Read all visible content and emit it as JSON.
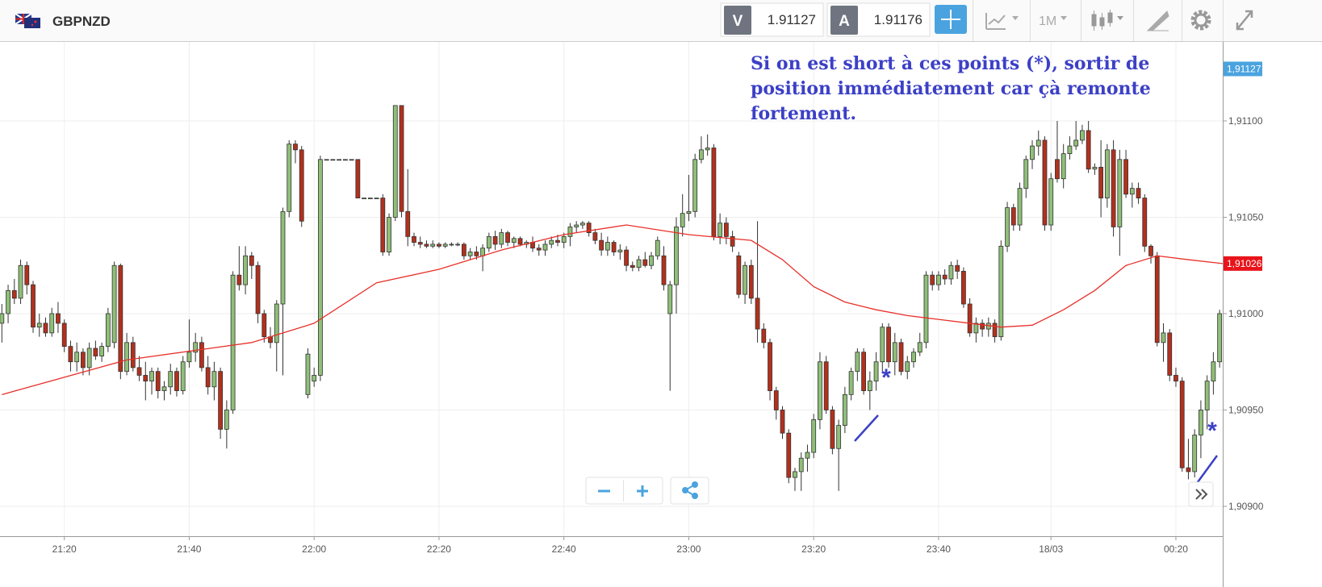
{
  "header": {
    "symbol": "GBPNZD",
    "bid_label": "V",
    "bid": 1.91127,
    "ask_label": "A",
    "ask": 1.91176,
    "timeframe": "1M"
  },
  "chart_data": {
    "type": "candlestick",
    "xlim": [
      -0.3,
      195.5
    ],
    "xticks": [
      {
        "value": 10,
        "label": "21:20"
      },
      {
        "value": 30,
        "label": "21:40"
      },
      {
        "value": 50,
        "label": "22:00"
      },
      {
        "value": 70,
        "label": "22:20"
      },
      {
        "value": 90,
        "label": "22:40"
      },
      {
        "value": 110,
        "label": "23:00"
      },
      {
        "value": 130,
        "label": "23:20"
      },
      {
        "value": 150,
        "label": "23:40"
      },
      {
        "value": 168,
        "label": "18/03"
      },
      {
        "value": 188,
        "label": "00:20"
      }
    ],
    "ylim": [
      1.908845,
      1.91141
    ],
    "yticks": [
      {
        "value": 1.909,
        "label": "1,90900"
      },
      {
        "value": 1.9095,
        "label": "1,90950"
      },
      {
        "value": 1.91,
        "label": "1,91000"
      },
      {
        "value": 1.9105,
        "label": "1,91050"
      },
      {
        "value": 1.911,
        "label": "1,91100"
      }
    ],
    "grid": true,
    "up_color": "#8fbf78",
    "down_color": "#b3301c",
    "candles": [
      [
        1.90995,
        1.91005,
        1.90985,
        1.91
      ],
      [
        1.91,
        1.91015,
        1.90995,
        1.91012
      ],
      [
        1.91012,
        1.91018,
        1.91005,
        1.91008
      ],
      [
        1.91008,
        1.91028,
        1.91005,
        1.91025
      ],
      [
        1.91025,
        1.91027,
        1.9101,
        1.91015
      ],
      [
        1.91015,
        1.91017,
        1.9099,
        1.90993
      ],
      [
        1.90993,
        1.91,
        1.90988,
        1.90995
      ],
      [
        1.90995,
        1.90998,
        1.90988,
        1.9099
      ],
      [
        1.9099,
        1.91003,
        1.90988,
        1.91
      ],
      [
        1.91,
        1.91006,
        1.9099,
        1.90995
      ],
      [
        1.90995,
        1.90997,
        1.9098,
        1.90983
      ],
      [
        1.90983,
        1.90986,
        1.9097,
        1.90975
      ],
      [
        1.90975,
        1.90985,
        1.9097,
        1.9098
      ],
      [
        1.9098,
        1.90982,
        1.90968,
        1.90972
      ],
      [
        1.90972,
        1.90985,
        1.90968,
        1.90982
      ],
      [
        1.90982,
        1.90986,
        1.90976,
        1.90978
      ],
      [
        1.90978,
        1.90985,
        1.90975,
        1.90983
      ],
      [
        1.90983,
        1.91003,
        1.9098,
        1.91
      ],
      [
        1.90985,
        1.91027,
        1.90982,
        1.91025
      ],
      [
        1.91025,
        1.91026,
        1.90966,
        1.9097
      ],
      [
        1.9097,
        1.9099,
        1.90968,
        1.90985
      ],
      [
        1.90985,
        1.90988,
        1.9097,
        1.90972
      ],
      [
        1.90972,
        1.90978,
        1.90965,
        1.90968
      ],
      [
        1.90968,
        1.90975,
        1.90955,
        1.90965
      ],
      [
        1.90965,
        1.90972,
        1.90958,
        1.9097
      ],
      [
        1.9097,
        1.90972,
        1.90956,
        1.9096
      ],
      [
        1.9096,
        1.90965,
        1.90955,
        1.90962
      ],
      [
        1.90962,
        1.90974,
        1.90958,
        1.9097
      ],
      [
        1.9097,
        1.90972,
        1.90957,
        1.9096
      ],
      [
        1.9096,
        1.90978,
        1.90958,
        1.90975
      ],
      [
        1.90975,
        1.90997,
        1.90972,
        1.9098
      ],
      [
        1.9098,
        1.9099,
        1.90975,
        1.90985
      ],
      [
        1.90985,
        1.90988,
        1.9097,
        1.90972
      ],
      [
        1.90972,
        1.90978,
        1.90958,
        1.90962
      ],
      [
        1.90962,
        1.90975,
        1.90955,
        1.9097
      ],
      [
        1.9097,
        1.90972,
        1.90935,
        1.9094
      ],
      [
        1.9094,
        1.90955,
        1.9093,
        1.9095
      ],
      [
        1.9095,
        1.91022,
        1.90948,
        1.9102
      ],
      [
        1.9102,
        1.91035,
        1.91012,
        1.91015
      ],
      [
        1.91015,
        1.91035,
        1.9101,
        1.9103
      ],
      [
        1.9103,
        1.91032,
        1.91018,
        1.91025
      ],
      [
        1.91025,
        1.91027,
        1.90995,
        1.91
      ],
      [
        1.91,
        1.91002,
        1.90985,
        1.90988
      ],
      [
        1.90988,
        1.90993,
        1.90982,
        1.90985
      ],
      [
        1.90985,
        1.91007,
        1.9097,
        1.91005
      ],
      [
        1.91005,
        1.91055,
        1.90968,
        1.91053
      ],
      [
        1.91053,
        1.9109,
        1.9105,
        1.91088
      ],
      [
        1.91088,
        1.9109,
        1.91078,
        1.91085
      ],
      [
        1.91085,
        1.91087,
        1.91045,
        1.91048
      ],
      [
        1.90958,
        1.90982,
        1.90956,
        1.90979
      ],
      [
        1.90965,
        1.90972,
        1.90962,
        1.90968
      ],
      [
        1.90968,
        1.91082,
        1.90965,
        1.9108
      ],
      [
        1.9108,
        1.9108,
        1.9108,
        1.9108
      ],
      [
        1.9108,
        1.9108,
        1.9108,
        1.9108
      ],
      [
        1.9108,
        1.9108,
        1.9108,
        1.9108
      ],
      [
        1.9108,
        1.9108,
        1.9108,
        1.9108
      ],
      [
        1.9108,
        1.9108,
        1.9108,
        1.9108
      ],
      [
        1.9108,
        1.9108,
        1.9106,
        1.9106
      ],
      [
        1.9106,
        1.9106,
        1.9106,
        1.9106
      ],
      [
        1.9106,
        1.9106,
        1.9106,
        1.9106
      ],
      [
        1.9106,
        1.9106,
        1.9106,
        1.9106
      ],
      [
        1.9106,
        1.91062,
        1.9103,
        1.91032
      ],
      [
        1.91032,
        1.91052,
        1.9103,
        1.9105
      ],
      [
        1.9105,
        1.91108,
        1.91048,
        1.91108
      ],
      [
        1.91108,
        1.91108,
        1.9105,
        1.91053
      ],
      [
        1.91053,
        1.91075,
        1.91035,
        1.9104
      ],
      [
        1.9104,
        1.91042,
        1.91035,
        1.91037
      ],
      [
        1.91037,
        1.9104,
        1.91034,
        1.91036
      ],
      [
        1.91036,
        1.91038,
        1.91034,
        1.91035
      ],
      [
        1.91035,
        1.91038,
        1.91034,
        1.91036
      ],
      [
        1.91036,
        1.91037,
        1.91034,
        1.91035
      ],
      [
        1.91035,
        1.91037,
        1.91034,
        1.91036
      ],
      [
        1.91036,
        1.91037,
        1.91035,
        1.91036
      ],
      [
        1.91036,
        1.91037,
        1.91035,
        1.91036
      ],
      [
        1.91036,
        1.91037,
        1.91028,
        1.9103
      ],
      [
        1.9103,
        1.91034,
        1.91028,
        1.91032
      ],
      [
        1.91032,
        1.91035,
        1.91028,
        1.9103
      ],
      [
        1.9103,
        1.91036,
        1.91022,
        1.91034
      ],
      [
        1.91034,
        1.91042,
        1.91032,
        1.9104
      ],
      [
        1.9104,
        1.91043,
        1.91033,
        1.91036
      ],
      [
        1.91036,
        1.91044,
        1.91034,
        1.91042
      ],
      [
        1.91042,
        1.91043,
        1.91035,
        1.91037
      ],
      [
        1.91037,
        1.9104,
        1.91034,
        1.91039
      ],
      [
        1.91039,
        1.9104,
        1.91035,
        1.91036
      ],
      [
        1.91036,
        1.91038,
        1.91034,
        1.91037
      ],
      [
        1.91037,
        1.9104,
        1.91032,
        1.91034
      ],
      [
        1.91034,
        1.91036,
        1.9103,
        1.91033
      ],
      [
        1.91033,
        1.91038,
        1.9103,
        1.91036
      ],
      [
        1.91036,
        1.9104,
        1.91034,
        1.91038
      ],
      [
        1.91038,
        1.91041,
        1.91035,
        1.91037
      ],
      [
        1.91037,
        1.91042,
        1.91034,
        1.9104
      ],
      [
        1.9104,
        1.91047,
        1.91035,
        1.91045
      ],
      [
        1.91045,
        1.91048,
        1.91042,
        1.91046
      ],
      [
        1.91046,
        1.91048,
        1.91044,
        1.91047
      ],
      [
        1.91047,
        1.91048,
        1.9104,
        1.91042
      ],
      [
        1.91042,
        1.91044,
        1.91036,
        1.91038
      ],
      [
        1.91038,
        1.91042,
        1.9103,
        1.91033
      ],
      [
        1.91033,
        1.9104,
        1.9103,
        1.91037
      ],
      [
        1.91037,
        1.91038,
        1.9103,
        1.91032
      ],
      [
        1.91032,
        1.91036,
        1.91028,
        1.91033
      ],
      [
        1.91033,
        1.91035,
        1.91022,
        1.91025
      ],
      [
        1.91025,
        1.91027,
        1.91022,
        1.91024
      ],
      [
        1.91024,
        1.9103,
        1.91022,
        1.91028
      ],
      [
        1.91028,
        1.91032,
        1.91024,
        1.91025
      ],
      [
        1.91025,
        1.91032,
        1.91023,
        1.9103
      ],
      [
        1.9103,
        1.9104,
        1.91028,
        1.91038
      ],
      [
        1.9103,
        1.91035,
        1.91012,
        1.91015
      ],
      [
        1.91,
        1.91017,
        1.9096,
        1.91015
      ],
      [
        1.91015,
        1.9105,
        1.91,
        1.91045
      ],
      [
        1.91045,
        1.91062,
        1.9104,
        1.91052
      ],
      [
        1.91052,
        1.91072,
        1.91048,
        1.91053
      ],
      [
        1.91053,
        1.91083,
        1.9105,
        1.9108
      ],
      [
        1.9108,
        1.91092,
        1.91078,
        1.91085
      ],
      [
        1.91085,
        1.91093,
        1.91082,
        1.91086
      ],
      [
        1.91086,
        1.91088,
        1.91038,
        1.9104
      ],
      [
        1.9104,
        1.91052,
        1.91036,
        1.91047
      ],
      [
        1.91047,
        1.9105,
        1.91036,
        1.9104
      ],
      [
        1.9104,
        1.91043,
        1.91032,
        1.91035
      ],
      [
        1.9103,
        1.91032,
        1.91008,
        1.9101
      ],
      [
        1.9101,
        1.91027,
        1.91005,
        1.91025
      ],
      [
        1.91025,
        1.91028,
        1.91005,
        1.91008
      ],
      [
        1.91008,
        1.91048,
        1.90985,
        1.90992
      ],
      [
        1.90992,
        1.90995,
        1.90982,
        1.90985
      ],
      [
        1.90985,
        1.90987,
        1.90955,
        1.9096
      ],
      [
        1.9096,
        1.90962,
        1.90945,
        1.9095
      ],
      [
        1.9095,
        1.90952,
        1.90935,
        1.90938
      ],
      [
        1.90938,
        1.9094,
        1.90912,
        1.90915
      ],
      [
        1.90915,
        1.9092,
        1.90908,
        1.90918
      ],
      [
        1.90918,
        1.90928,
        1.90908,
        1.90925
      ],
      [
        1.90925,
        1.90932,
        1.90918,
        1.90928
      ],
      [
        1.90928,
        1.90948,
        1.90925,
        1.90945
      ],
      [
        1.90945,
        1.9098,
        1.9094,
        1.90975
      ],
      [
        1.90975,
        1.90978,
        1.90948,
        1.9095
      ],
      [
        1.9095,
        1.90952,
        1.90927,
        1.9093
      ],
      [
        1.9093,
        1.90945,
        1.90908,
        1.90942
      ],
      [
        1.90942,
        1.90962,
        1.90938,
        1.90958
      ],
      [
        1.90958,
        1.90972,
        1.90955,
        1.9097
      ],
      [
        1.9097,
        1.90982,
        1.90965,
        1.9098
      ],
      [
        1.9098,
        1.90982,
        1.90958,
        1.9096
      ],
      [
        1.9096,
        1.9097,
        1.9095,
        1.90965
      ],
      [
        1.90965,
        1.9098,
        1.9096,
        1.90975
      ],
      [
        1.90975,
        1.90995,
        1.9097,
        1.90993
      ],
      [
        1.90993,
        1.90995,
        1.90972,
        1.90975
      ],
      [
        1.90975,
        1.9099,
        1.90968,
        1.90985
      ],
      [
        1.90985,
        1.90987,
        1.90968,
        1.9097
      ],
      [
        1.9097,
        1.90978,
        1.90966,
        1.90975
      ],
      [
        1.90975,
        1.90982,
        1.90972,
        1.9098
      ],
      [
        1.9098,
        1.9099,
        1.90978,
        1.90985
      ],
      [
        1.90985,
        1.91022,
        1.90982,
        1.9102
      ],
      [
        1.9102,
        1.91022,
        1.91012,
        1.91015
      ],
      [
        1.91015,
        1.91022,
        1.91012,
        1.9102
      ],
      [
        1.9102,
        1.91023,
        1.91015,
        1.91018
      ],
      [
        1.91018,
        1.91027,
        1.91015,
        1.91025
      ],
      [
        1.91025,
        1.91028,
        1.91018,
        1.91022
      ],
      [
        1.91022,
        1.91024,
        1.91003,
        1.91005
      ],
      [
        1.91005,
        1.91008,
        1.90988,
        1.9099
      ],
      [
        1.9099,
        1.90998,
        1.90985,
        1.90995
      ],
      [
        1.90995,
        1.90997,
        1.90988,
        1.90992
      ],
      [
        1.90992,
        1.90998,
        1.90988,
        1.90995
      ],
      [
        1.90995,
        1.90997,
        1.90985,
        1.90988
      ],
      [
        1.90988,
        1.91038,
        1.90986,
        1.91035
      ],
      [
        1.91035,
        1.91058,
        1.91032,
        1.91055
      ],
      [
        1.91055,
        1.91057,
        1.91043,
        1.91046
      ],
      [
        1.91046,
        1.91068,
        1.91043,
        1.91065
      ],
      [
        1.91065,
        1.91082,
        1.9106,
        1.9108
      ],
      [
        1.9108,
        1.9109,
        1.91075,
        1.91087
      ],
      [
        1.91087,
        1.91095,
        1.91082,
        1.9109
      ],
      [
        1.9109,
        1.91092,
        1.91043,
        1.91046
      ],
      [
        1.91046,
        1.91073,
        1.91043,
        1.9107
      ],
      [
        1.9108,
        1.911,
        1.91068,
        1.9107
      ],
      [
        1.9107,
        1.91088,
        1.91065,
        1.91083
      ],
      [
        1.91083,
        1.91092,
        1.9108,
        1.91087
      ],
      [
        1.91087,
        1.911,
        1.91085,
        1.9109
      ],
      [
        1.9109,
        1.91098,
        1.91088,
        1.91095
      ],
      [
        1.91095,
        1.911,
        1.91073,
        1.91075
      ],
      [
        1.91075,
        1.91078,
        1.91072,
        1.91076
      ],
      [
        1.91076,
        1.9109,
        1.9105,
        1.9106
      ],
      [
        1.9106,
        1.91088,
        1.91055,
        1.91085
      ],
      [
        1.91085,
        1.9109,
        1.9104,
        1.91045
      ],
      [
        1.91045,
        1.91085,
        1.9103,
        1.9108
      ],
      [
        1.9108,
        1.91085,
        1.9106,
        1.91062
      ],
      [
        1.91062,
        1.91068,
        1.91055,
        1.91065
      ],
      [
        1.91065,
        1.91068,
        1.91057,
        1.9106
      ],
      [
        1.9106,
        1.91062,
        1.91032,
        1.91035
      ],
      [
        1.91035,
        1.91036,
        1.91026,
        1.9103
      ],
      [
        1.9103,
        1.91032,
        1.90983,
        1.90985
      ],
      [
        1.90985,
        1.90995,
        1.90975,
        1.9099
      ],
      [
        1.9099,
        1.90992,
        1.90965,
        1.90968
      ],
      [
        1.90968,
        1.90972,
        1.90962,
        1.90965
      ],
      [
        1.90965,
        1.90967,
        1.90918,
        1.9092
      ],
      [
        1.9092,
        1.90935,
        1.90914,
        1.90918
      ],
      [
        1.90918,
        1.9094,
        1.90915,
        1.90937
      ],
      [
        1.90937,
        1.90955,
        1.90925,
        1.9095
      ],
      [
        1.9095,
        1.90968,
        1.9094,
        1.90965
      ],
      [
        1.90965,
        1.9098,
        1.90958,
        1.90975
      ],
      [
        1.90975,
        1.91002,
        1.90972,
        1.91
      ]
    ],
    "moving_average": {
      "color": "#e8302a",
      "x": [
        0,
        20,
        40,
        50,
        60,
        70,
        80,
        90,
        100,
        110,
        120,
        125,
        130,
        135,
        140,
        145,
        150,
        155,
        160,
        165,
        170,
        175,
        180,
        185,
        190,
        195.5
      ],
      "values": [
        1.90958,
        1.90976,
        1.90985,
        1.90995,
        1.91016,
        1.91023,
        1.91033,
        1.91041,
        1.91046,
        1.91041,
        1.91038,
        1.91028,
        1.91014,
        1.91006,
        1.91002,
        1.90999,
        1.90997,
        1.90995,
        1.90993,
        1.90994,
        1.91002,
        1.91012,
        1.91025,
        1.9103,
        1.91028,
        1.91026
      ]
    },
    "price_tags": [
      {
        "value": 1.91127,
        "label": "1,91127",
        "color": "#4aa3df"
      },
      {
        "value": 1.91026,
        "label": "1,91026",
        "color": "#e8141a"
      }
    ],
    "annotation": [
      "Si on est short à ces points (*), sortir de",
      "position immédiatement car çà remonte",
      "fortement."
    ],
    "markers": [
      "*",
      "*"
    ]
  }
}
